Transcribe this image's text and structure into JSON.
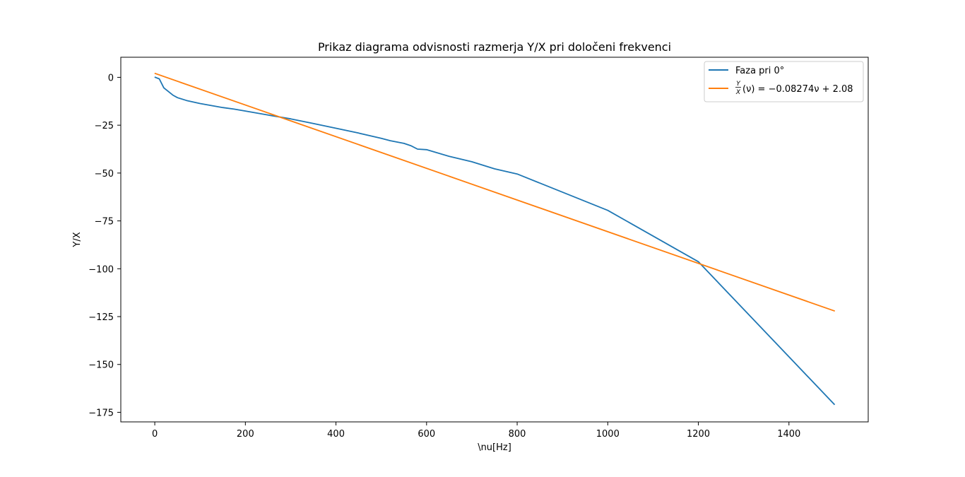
{
  "chart_data": {
    "type": "line",
    "title": "Prikaz diagrama odvisnosti razmerja Y/X pri določeni frekvenci",
    "xlabel": "\\nu[Hz]",
    "ylabel": "Y/X",
    "xlim": [
      -75,
      1575
    ],
    "ylim": [
      -180,
      10.5
    ],
    "xticks": [
      0,
      200,
      400,
      600,
      800,
      1000,
      1200,
      1400
    ],
    "yticks": [
      0,
      -25,
      -50,
      -75,
      -100,
      -125,
      -150,
      -175
    ],
    "xtick_labels": [
      "0",
      "200",
      "400",
      "600",
      "800",
      "1000",
      "1200",
      "1400"
    ],
    "ytick_labels": [
      "0",
      "−25",
      "−50",
      "−75",
      "−100",
      "−125",
      "−150",
      "−175"
    ],
    "grid": false,
    "legend_position": "top-right",
    "series": [
      {
        "name": "Faza pri 0°",
        "color": "#1f77b4",
        "x": [
          1,
          10,
          20,
          40,
          50,
          70,
          100,
          150,
          175,
          200,
          250,
          300,
          350,
          400,
          450,
          500,
          520,
          550,
          565,
          580,
          600,
          650,
          700,
          750,
          800,
          1000,
          1200,
          1500
        ],
        "y": [
          0,
          -0.8,
          -5.5,
          -9.3,
          -10.6,
          -12.1,
          -13.7,
          -15.8,
          -16.6,
          -17.6,
          -19.7,
          -21.7,
          -24.1,
          -26.6,
          -29.1,
          -31.9,
          -33.1,
          -34.5,
          -35.7,
          -37.5,
          -37.8,
          -41.3,
          -44.1,
          -47.8,
          -50.5,
          -69.5,
          -96.3,
          -170.8
        ]
      },
      {
        "name": "$\\frac{Y}{X}(\\nu) = -0.08274\\nu + 2.08$",
        "color": "#ff7f0e",
        "x": [
          1,
          1500
        ],
        "y": [
          2.0,
          -122.0
        ]
      }
    ],
    "legend_entries": [
      "Faza pri 0°",
      "(ν) = −0.08274ν + 2.08"
    ],
    "legend_fraction_numerator": "Y",
    "legend_fraction_denominator": "X"
  }
}
